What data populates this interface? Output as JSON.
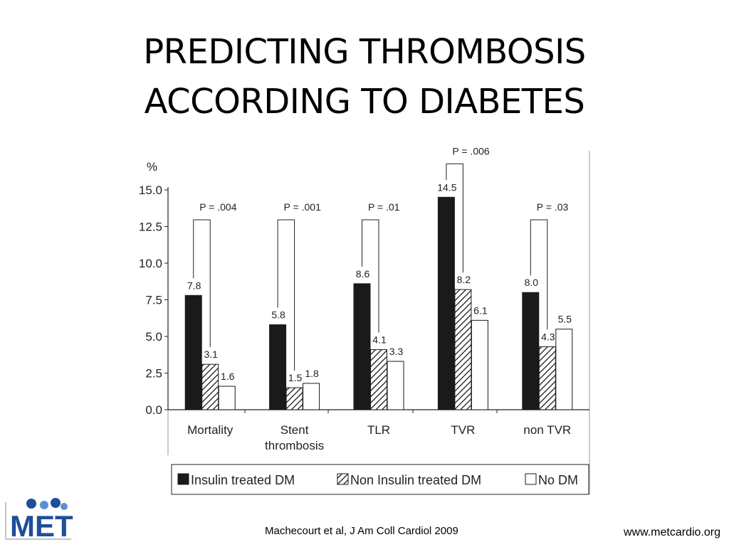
{
  "slide": {
    "title_line1": "PREDICTING THROMBOSIS",
    "title_line2": "ACCORDING TO DIABETES",
    "citation": "Machecourt et al, J Am Coll Cardiol 2009",
    "url": "www.metcardio.org",
    "logo_text": "MET"
  },
  "chart_data": {
    "type": "bar",
    "title": "",
    "ylabel": "%",
    "xlabel": "",
    "ylim": [
      0,
      15
    ],
    "yticks": [
      "0.0",
      "2.5",
      "5.0",
      "7.5",
      "10.0",
      "12.5",
      "15.0"
    ],
    "categories": [
      "Mortality",
      "Stent thrombosis",
      "TLR",
      "TVR",
      "non TVR"
    ],
    "series": [
      {
        "name": "Insulin treated DM",
        "fill": "solid",
        "color": "#1a1a1a",
        "values": [
          7.8,
          5.8,
          8.6,
          14.5,
          8.0
        ],
        "labels": [
          "7.8",
          "5.8",
          "8.6",
          "14.5",
          "8.0"
        ]
      },
      {
        "name": "Non Insulin treated DM",
        "fill": "hatched",
        "color": "#1a1a1a",
        "values": [
          3.1,
          1.5,
          4.1,
          8.2,
          4.3
        ],
        "labels": [
          "3.1",
          "1.5",
          "4.1",
          "8.2",
          "4.3"
        ]
      },
      {
        "name": "No DM",
        "fill": "empty",
        "color": "#ffffff",
        "values": [
          1.6,
          1.8,
          3.3,
          6.1,
          5.5
        ],
        "labels": [
          "1.6",
          "1.8",
          "3.3",
          "6.1",
          "5.5"
        ]
      }
    ],
    "p_values": [
      "P = .004",
      "P = .001",
      "P = .01",
      "P = .006",
      "P = .03"
    ],
    "legend_position": "bottom",
    "grid": false
  }
}
